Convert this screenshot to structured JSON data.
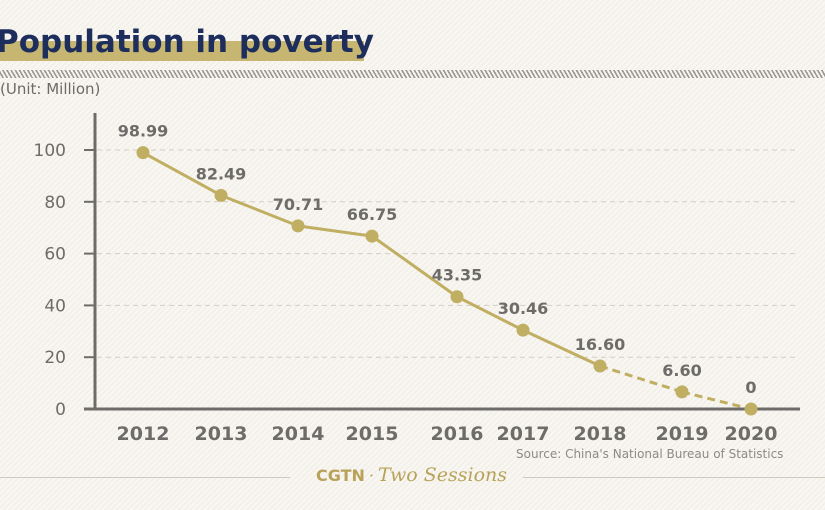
{
  "header": {
    "title": "Population in poverty",
    "unit": "(Unit: Million)"
  },
  "footer": {
    "source": "Source: China's National Bureau of Statistics",
    "brand": "CGTN",
    "separator": "·",
    "program": "Two Sessions"
  },
  "colors": {
    "line": "#c0ae62",
    "title": "#1d2d5c",
    "title_highlight": "#c6b671",
    "axis": "#6e6c69",
    "grid": "#d2cec6"
  },
  "chart_data": {
    "type": "line",
    "title": "Population in poverty",
    "subtitle": "(Unit: Million)",
    "xlabel": "",
    "ylabel": "",
    "categories": [
      "2012",
      "2013",
      "2014",
      "2015",
      "2016",
      "2017",
      "2018",
      "2019",
      "2020"
    ],
    "series": [
      {
        "name": "Population in poverty",
        "values": [
          98.99,
          82.49,
          70.71,
          66.75,
          43.35,
          30.46,
          16.6,
          6.6,
          0
        ],
        "data_labels": [
          "98.99",
          "82.49",
          "70.71",
          "66.75",
          "43.35",
          "30.46",
          "16.60",
          "6.60",
          "0"
        ],
        "solid_segment_until_index": 6,
        "dashed_after": "2018"
      }
    ],
    "ylim": [
      0,
      100
    ],
    "yticks": [
      0,
      20,
      40,
      60,
      80,
      100
    ],
    "grid": true,
    "grid_style": "dashed horizontal",
    "legend": "none",
    "source": "Source: China's National Bureau of Statistics"
  }
}
